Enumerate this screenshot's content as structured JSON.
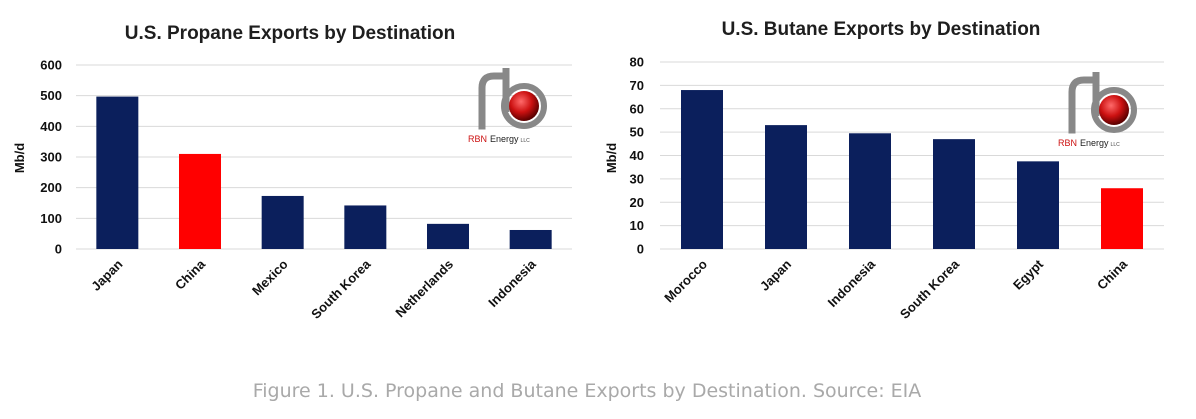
{
  "colors": {
    "bar": "#0b1f5c",
    "highlight": "#ff0000",
    "grid": "#d9d9d9",
    "logo_red": "#cc1111",
    "logo_gray": "#888888"
  },
  "logo": {
    "brand": "RBN",
    "suffix": "Energy",
    "llc": "LLC"
  },
  "chart_data": [
    {
      "type": "bar",
      "title": "U.S. Propane Exports by Destination",
      "ylabel": "Mb/d",
      "xlabel": "",
      "ylim": [
        0,
        600
      ],
      "yticks": [
        0,
        100,
        200,
        300,
        400,
        500,
        600
      ],
      "grid": true,
      "categories": [
        "Japan",
        "China",
        "Mexico",
        "South Korea",
        "Netherlands",
        "Indonesia"
      ],
      "values": [
        497,
        310,
        173,
        142,
        82,
        62
      ],
      "highlight": [
        "China"
      ]
    },
    {
      "type": "bar",
      "title": "U.S. Butane Exports by Destination",
      "ylabel": "Mb/d",
      "xlabel": "",
      "ylim": [
        0,
        80
      ],
      "yticks": [
        0,
        10,
        20,
        30,
        40,
        50,
        60,
        70,
        80
      ],
      "grid": true,
      "categories": [
        "Morocco",
        "Japan",
        "Indonesia",
        "South Korea",
        "Egypt",
        "China"
      ],
      "values": [
        68,
        53,
        49.5,
        47,
        37.5,
        26
      ],
      "highlight": [
        "China"
      ]
    }
  ],
  "caption": "Figure 1. U.S. Propane and Butane Exports by Destination. Source: EIA"
}
